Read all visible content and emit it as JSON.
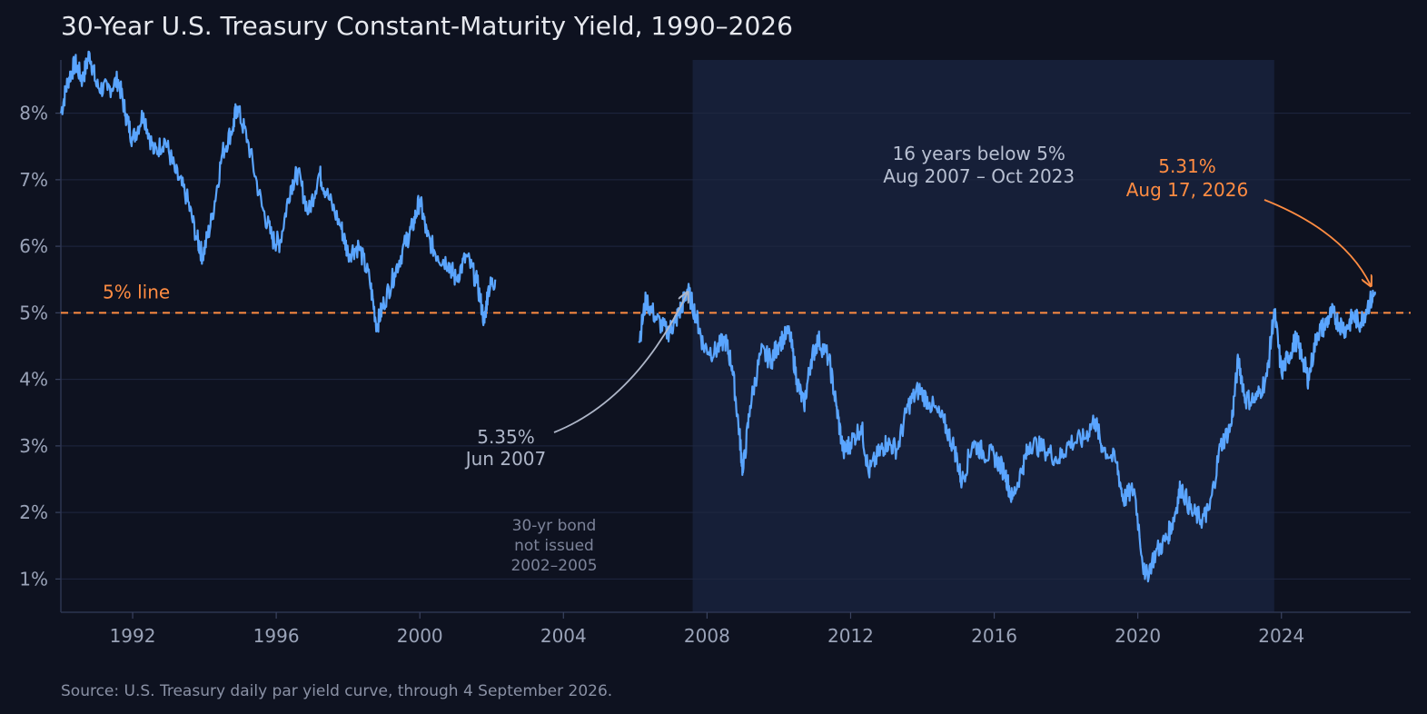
{
  "chart_data": {
    "type": "line",
    "title": "30-Year U.S. Treasury Constant-Maturity Yield, 1990–2026",
    "source": "Source: U.S. Treasury daily par yield curve, through 4 September 2026.",
    "xlabel": "",
    "ylabel": "",
    "xlim": [
      1990.0,
      2027.6
    ],
    "ylim": [
      0.5,
      8.8
    ],
    "x_ticks": [
      {
        "value": 1992,
        "label": "1992"
      },
      {
        "value": 1996,
        "label": "1996"
      },
      {
        "value": 2000,
        "label": "2000"
      },
      {
        "value": 2004,
        "label": "2004"
      },
      {
        "value": 2008,
        "label": "2008"
      },
      {
        "value": 2012,
        "label": "2012"
      },
      {
        "value": 2016,
        "label": "2016"
      },
      {
        "value": 2020,
        "label": "2020"
      },
      {
        "value": 2024,
        "label": "2024"
      }
    ],
    "y_ticks": [
      {
        "value": 1,
        "label": "1%"
      },
      {
        "value": 2,
        "label": "2%"
      },
      {
        "value": 3,
        "label": "3%"
      },
      {
        "value": 4,
        "label": "4%"
      },
      {
        "value": 5,
        "label": "5%"
      },
      {
        "value": 6,
        "label": "6%"
      },
      {
        "value": 7,
        "label": "7%"
      },
      {
        "value": 8,
        "label": "8%"
      }
    ],
    "grid": true,
    "colors": {
      "line": "#5aa5ff",
      "accent": "#ff8c42",
      "shade": "#17213a",
      "annotation": "#aeb6c8",
      "background": "#0e1220"
    },
    "reference_line": {
      "y": 5,
      "label": "5% line"
    },
    "shaded_region": {
      "x_start": 2007.6,
      "x_end": 2023.8,
      "label_line1": "16 years below 5%",
      "label_line2": "Aug 2007 – Oct 2023"
    },
    "gap_note": [
      "30-yr bond",
      "not issued",
      "2002–2005"
    ],
    "annotations": [
      {
        "label_line1": "5.35%",
        "label_line2": "Jun 2007",
        "x": 2007.45,
        "y": 5.35,
        "color": "#aeb6c8"
      },
      {
        "label_line1": "5.31%",
        "label_line2": "Aug 17, 2026",
        "x": 2026.63,
        "y": 5.31,
        "color": "#ff8c42"
      }
    ],
    "series": [
      {
        "segments": [
          [
            [
              1990.0,
              8.0
            ],
            [
              1990.2,
              8.5
            ],
            [
              1990.4,
              8.75
            ],
            [
              1990.6,
              8.5
            ],
            [
              1990.8,
              8.9
            ],
            [
              1991.0,
              8.4
            ],
            [
              1991.3,
              8.35
            ],
            [
              1991.6,
              8.5
            ],
            [
              1991.8,
              8.0
            ],
            [
              1992.0,
              7.6
            ],
            [
              1992.3,
              8.0
            ],
            [
              1992.6,
              7.4
            ],
            [
              1992.9,
              7.6
            ],
            [
              1993.2,
              7.1
            ],
            [
              1993.5,
              6.75
            ],
            [
              1993.8,
              6.1
            ],
            [
              1993.95,
              5.85
            ],
            [
              1994.2,
              6.4
            ],
            [
              1994.5,
              7.4
            ],
            [
              1994.8,
              7.8
            ],
            [
              1994.9,
              8.1
            ],
            [
              1995.2,
              7.6
            ],
            [
              1995.6,
              6.6
            ],
            [
              1995.9,
              6.1
            ],
            [
              1996.1,
              6.05
            ],
            [
              1996.4,
              6.9
            ],
            [
              1996.6,
              7.1
            ],
            [
              1996.9,
              6.5
            ],
            [
              1997.2,
              7.1
            ],
            [
              1997.4,
              6.8
            ],
            [
              1997.8,
              6.3
            ],
            [
              1998.0,
              5.9
            ],
            [
              1998.3,
              6.0
            ],
            [
              1998.6,
              5.5
            ],
            [
              1998.8,
              4.8
            ],
            [
              1999.0,
              5.15
            ],
            [
              1999.3,
              5.6
            ],
            [
              1999.6,
              6.05
            ],
            [
              1999.8,
              6.3
            ],
            [
              2000.0,
              6.7
            ],
            [
              2000.2,
              6.15
            ],
            [
              2000.5,
              5.85
            ],
            [
              2000.8,
              5.75
            ],
            [
              2001.0,
              5.5
            ],
            [
              2001.3,
              5.85
            ],
            [
              2001.6,
              5.45
            ],
            [
              2001.8,
              4.85
            ],
            [
              2001.9,
              5.35
            ],
            [
              2002.1,
              5.5
            ]
          ],
          [
            [
              2006.1,
              4.55
            ],
            [
              2006.3,
              5.2
            ],
            [
              2006.6,
              4.9
            ],
            [
              2006.9,
              4.7
            ],
            [
              2007.1,
              4.85
            ],
            [
              2007.3,
              5.1
            ],
            [
              2007.45,
              5.35
            ],
            [
              2007.7,
              4.95
            ],
            [
              2007.9,
              4.5
            ],
            [
              2008.2,
              4.4
            ],
            [
              2008.5,
              4.6
            ],
            [
              2008.7,
              4.2
            ],
            [
              2008.9,
              3.2
            ],
            [
              2009.0,
              2.6
            ],
            [
              2009.2,
              3.6
            ],
            [
              2009.5,
              4.4
            ],
            [
              2009.8,
              4.3
            ],
            [
              2010.0,
              4.55
            ],
            [
              2010.3,
              4.7
            ],
            [
              2010.5,
              4.0
            ],
            [
              2010.7,
              3.6
            ],
            [
              2010.9,
              4.3
            ],
            [
              2011.1,
              4.6
            ],
            [
              2011.4,
              4.3
            ],
            [
              2011.6,
              3.6
            ],
            [
              2011.8,
              2.9
            ],
            [
              2012.0,
              3.05
            ],
            [
              2012.3,
              3.3
            ],
            [
              2012.5,
              2.6
            ],
            [
              2012.8,
              2.9
            ],
            [
              2013.0,
              3.05
            ],
            [
              2013.3,
              2.95
            ],
            [
              2013.6,
              3.6
            ],
            [
              2013.9,
              3.85
            ],
            [
              2014.2,
              3.65
            ],
            [
              2014.6,
              3.35
            ],
            [
              2014.9,
              2.95
            ],
            [
              2015.1,
              2.45
            ],
            [
              2015.4,
              3.05
            ],
            [
              2015.7,
              2.9
            ],
            [
              2016.0,
              2.85
            ],
            [
              2016.3,
              2.6
            ],
            [
              2016.5,
              2.2
            ],
            [
              2016.8,
              2.7
            ],
            [
              2017.0,
              3.05
            ],
            [
              2017.4,
              2.95
            ],
            [
              2017.8,
              2.8
            ],
            [
              2018.1,
              3.05
            ],
            [
              2018.5,
              3.1
            ],
            [
              2018.8,
              3.4
            ],
            [
              2019.0,
              3.0
            ],
            [
              2019.4,
              2.75
            ],
            [
              2019.6,
              2.2
            ],
            [
              2019.9,
              2.35
            ],
            [
              2020.2,
              1.0
            ],
            [
              2020.5,
              1.4
            ],
            [
              2020.8,
              1.6
            ],
            [
              2021.0,
              1.9
            ],
            [
              2021.2,
              2.4
            ],
            [
              2021.5,
              2.0
            ],
            [
              2021.8,
              1.9
            ],
            [
              2022.0,
              2.05
            ],
            [
              2022.3,
              3.0
            ],
            [
              2022.6,
              3.3
            ],
            [
              2022.8,
              4.3
            ],
            [
              2023.0,
              3.7
            ],
            [
              2023.3,
              3.7
            ],
            [
              2023.6,
              4.05
            ],
            [
              2023.8,
              5.05
            ],
            [
              2024.0,
              4.1
            ],
            [
              2024.2,
              4.35
            ],
            [
              2024.4,
              4.6
            ],
            [
              2024.6,
              4.3
            ],
            [
              2024.75,
              4.0
            ],
            [
              2025.0,
              4.7
            ],
            [
              2025.2,
              4.8
            ],
            [
              2025.4,
              5.0
            ],
            [
              2025.6,
              4.85
            ],
            [
              2025.8,
              4.75
            ],
            [
              2026.0,
              4.95
            ],
            [
              2026.2,
              4.85
            ],
            [
              2026.4,
              5.1
            ],
            [
              2026.63,
              5.31
            ]
          ]
        ]
      }
    ]
  }
}
